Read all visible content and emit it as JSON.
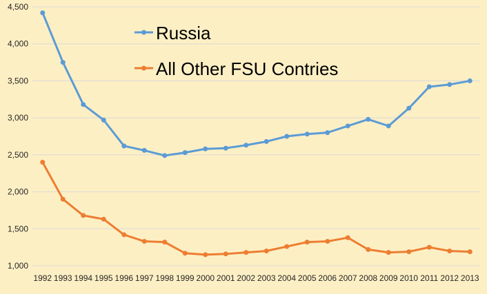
{
  "chart_data": {
    "type": "line",
    "title": "",
    "xlabel": "",
    "ylabel": "",
    "x": [
      "1992",
      "1993",
      "1994",
      "1995",
      "1996",
      "1997",
      "1998",
      "1999",
      "2000",
      "2001",
      "2002",
      "2003",
      "2004",
      "2005",
      "2006",
      "2007",
      "2008",
      "2009",
      "2010",
      "2011",
      "2012",
      "2013"
    ],
    "ylim": [
      1000,
      4500
    ],
    "yticks": [
      "1,000",
      "1,500",
      "2,000",
      "2,500",
      "3,000",
      "3,500",
      "4,000",
      "4,500"
    ],
    "grid": true,
    "legend_position": "top-left inside",
    "series": [
      {
        "name": "Russia",
        "color": "#5b9bd5",
        "values": [
          4420,
          3750,
          3180,
          2970,
          2620,
          2560,
          2490,
          2530,
          2580,
          2590,
          2630,
          2680,
          2750,
          2780,
          2800,
          2890,
          2980,
          2890,
          3130,
          3420,
          3450,
          3500
        ]
      },
      {
        "name": "All Other FSU  Contries",
        "color": "#ed7d31",
        "values": [
          2400,
          1900,
          1680,
          1630,
          1420,
          1330,
          1320,
          1170,
          1150,
          1160,
          1180,
          1200,
          1260,
          1320,
          1330,
          1380,
          1220,
          1180,
          1190,
          1250,
          1200,
          1190
        ]
      }
    ]
  }
}
